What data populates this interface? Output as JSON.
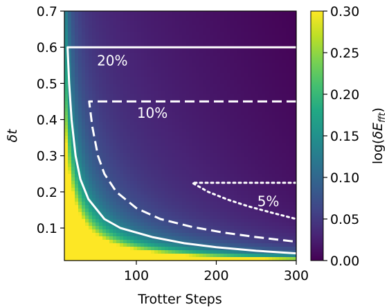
{
  "chart_data": {
    "type": "heatmap",
    "title": "",
    "xlabel": "Trotter Steps",
    "ylabel": "δt",
    "xlim": [
      10,
      300
    ],
    "ylim": [
      0.01,
      0.7
    ],
    "x_ticks": [
      "100",
      "200",
      "300"
    ],
    "x_tick_values": [
      100,
      200,
      300
    ],
    "y_ticks": [
      "0.1",
      "0.2",
      "0.3",
      "0.4",
      "0.5",
      "0.6",
      "0.7"
    ],
    "y_tick_values": [
      0.1,
      0.2,
      0.3,
      0.4,
      0.5,
      0.6,
      0.7
    ],
    "colormap": "viridis",
    "colorbar": {
      "label": "log(δE_fft)",
      "label_main": "log(",
      "label_symbol": "δE",
      "label_sub": "fft",
      "label_close": ")",
      "range": [
        0.0,
        0.3
      ],
      "ticks": [
        "0.00",
        "0.05",
        "0.10",
        "0.15",
        "0.20",
        "0.25",
        "0.30"
      ],
      "tick_values": [
        0.0,
        0.05,
        0.1,
        0.15,
        0.2,
        0.25,
        0.3
      ]
    },
    "contours": [
      {
        "label": "20%",
        "style": "solid",
        "label_x": 70,
        "label_y": 0.55,
        "points": [
          [
            14,
            0.6
          ],
          [
            16,
            0.5
          ],
          [
            19,
            0.4
          ],
          [
            24,
            0.3
          ],
          [
            30,
            0.235
          ],
          [
            40,
            0.18
          ],
          [
            60,
            0.125
          ],
          [
            80,
            0.1
          ],
          [
            120,
            0.075
          ],
          [
            160,
            0.058
          ],
          [
            200,
            0.047
          ],
          [
            250,
            0.037
          ],
          [
            300,
            0.03
          ]
        ],
        "plateau_end": 300
      },
      {
        "label": "10%",
        "style": "dashed",
        "label_x": 120,
        "label_y": 0.405,
        "points": [
          [
            41,
            0.45
          ],
          [
            45,
            0.38
          ],
          [
            52,
            0.3
          ],
          [
            60,
            0.25
          ],
          [
            75,
            0.2
          ],
          [
            100,
            0.155
          ],
          [
            130,
            0.125
          ],
          [
            170,
            0.103
          ],
          [
            210,
            0.087
          ],
          [
            250,
            0.075
          ],
          [
            300,
            0.062
          ]
        ],
        "plateau_end": 300
      },
      {
        "label": "5%",
        "style": "dotted",
        "label_x": 265,
        "label_y": 0.16,
        "points": [
          [
            170,
            0.225
          ],
          [
            190,
            0.2
          ],
          [
            215,
            0.178
          ],
          [
            240,
            0.16
          ],
          [
            270,
            0.142
          ],
          [
            300,
            0.125
          ]
        ],
        "plateau_end": 300
      }
    ]
  }
}
